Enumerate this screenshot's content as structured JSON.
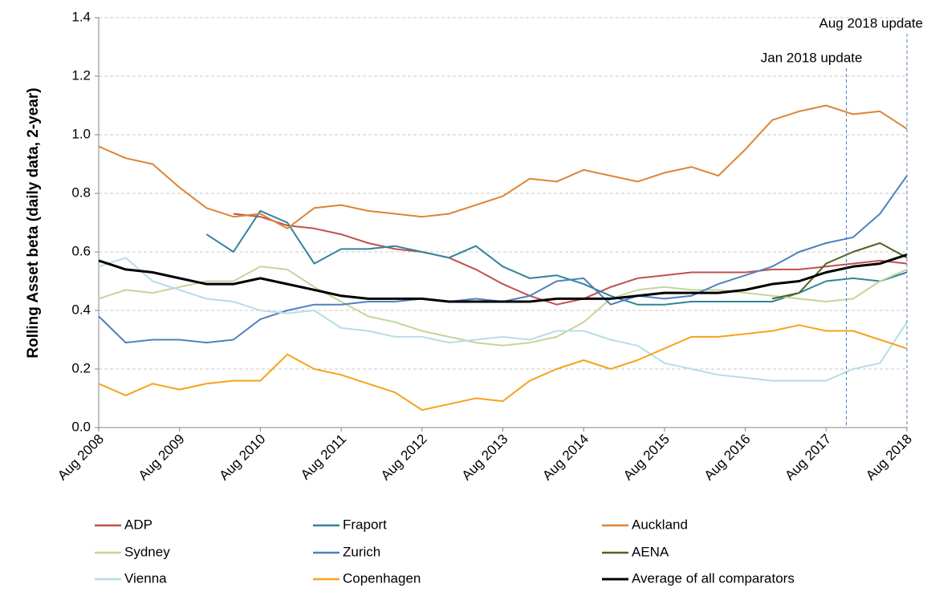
{
  "chart_data": {
    "type": "line",
    "y_label": "Rolling Asset beta (daily data, 2-year)",
    "x": [
      "2008-08",
      "2008-12",
      "2009-04",
      "2009-08",
      "2009-12",
      "2010-04",
      "2010-08",
      "2010-12",
      "2011-04",
      "2011-08",
      "2011-12",
      "2012-04",
      "2012-08",
      "2012-12",
      "2013-04",
      "2013-08",
      "2013-12",
      "2014-04",
      "2014-08",
      "2014-12",
      "2015-04",
      "2015-08",
      "2015-12",
      "2016-04",
      "2016-08",
      "2016-12",
      "2017-04",
      "2017-08",
      "2017-12",
      "2018-04",
      "2018-08"
    ],
    "xlim": [
      "2008-08",
      "2018-08"
    ],
    "xticks": [
      {
        "value": "2008-08",
        "label": "Aug 2008"
      },
      {
        "value": "2009-08",
        "label": "Aug 2009"
      },
      {
        "value": "2010-08",
        "label": "Aug 2010"
      },
      {
        "value": "2011-08",
        "label": "Aug 2011"
      },
      {
        "value": "2012-08",
        "label": "Aug 2012"
      },
      {
        "value": "2013-08",
        "label": "Aug 2013"
      },
      {
        "value": "2014-08",
        "label": "Aug 2014"
      },
      {
        "value": "2015-08",
        "label": "Aug 2015"
      },
      {
        "value": "2016-08",
        "label": "Aug 2016"
      },
      {
        "value": "2017-08",
        "label": "Aug 2017"
      },
      {
        "value": "2018-08",
        "label": "Aug 2018"
      }
    ],
    "ylim": [
      0,
      1.4
    ],
    "yticks": [
      {
        "value": 0,
        "label": "0.0"
      },
      {
        "value": 0.2,
        "label": "0.2"
      },
      {
        "value": 0.4,
        "label": "0.4"
      },
      {
        "value": 0.6,
        "label": "0.6"
      },
      {
        "value": 0.8,
        "label": "0.8"
      },
      {
        "value": 1,
        "label": "1.0"
      },
      {
        "value": 1.2,
        "label": "1.2"
      },
      {
        "value": 1.4,
        "label": "1.4"
      }
    ],
    "grid": true,
    "legend": "bottom",
    "annotations": [
      {
        "text": "Jan 2018 update",
        "x": "2017-11"
      },
      {
        "text": "Aug 2018 update",
        "x": "2018-08"
      }
    ],
    "series": [
      {
        "name": "ADP",
        "color": "#c0504d",
        "values": [
          null,
          null,
          null,
          null,
          null,
          0.73,
          0.72,
          0.69,
          0.68,
          0.66,
          0.63,
          0.61,
          0.6,
          0.58,
          0.54,
          0.49,
          0.45,
          0.42,
          0.44,
          0.48,
          0.51,
          0.52,
          0.53,
          0.53,
          0.53,
          0.54,
          0.54,
          0.55,
          0.56,
          0.57,
          0.56
        ]
      },
      {
        "name": "Fraport",
        "color": "#31849b",
        "values": [
          null,
          null,
          null,
          null,
          0.66,
          0.6,
          0.74,
          0.7,
          0.56,
          0.61,
          0.61,
          0.62,
          0.6,
          0.58,
          0.62,
          0.55,
          0.51,
          0.52,
          0.49,
          0.45,
          0.42,
          0.42,
          0.43,
          0.43,
          0.43,
          0.43,
          0.46,
          0.5,
          0.51,
          0.5,
          0.53
        ]
      },
      {
        "name": "Auckland",
        "color": "#dd8435",
        "values": [
          0.96,
          0.92,
          0.9,
          0.82,
          0.75,
          0.72,
          0.73,
          0.68,
          0.75,
          0.76,
          0.74,
          0.73,
          0.72,
          0.73,
          0.76,
          0.79,
          0.85,
          0.84,
          0.88,
          0.86,
          0.84,
          0.87,
          0.89,
          0.86,
          0.95,
          1.05,
          1.08,
          1.1,
          1.07,
          1.08,
          1.02
        ]
      },
      {
        "name": "Sydney",
        "color": "#c3d69b",
        "values": [
          0.44,
          0.47,
          0.46,
          0.48,
          0.5,
          0.5,
          0.55,
          0.54,
          0.48,
          0.43,
          0.38,
          0.36,
          0.33,
          0.31,
          0.29,
          0.28,
          0.29,
          0.31,
          0.36,
          0.44,
          0.47,
          0.48,
          0.47,
          0.47,
          0.46,
          0.45,
          0.44,
          0.43,
          0.44,
          0.5,
          0.54
        ]
      },
      {
        "name": "Zurich",
        "color": "#4f81bd",
        "values": [
          0.38,
          0.29,
          0.3,
          0.3,
          0.29,
          0.3,
          0.37,
          0.4,
          0.42,
          0.42,
          0.43,
          0.43,
          0.44,
          0.43,
          0.44,
          0.43,
          0.45,
          0.5,
          0.51,
          0.42,
          0.45,
          0.44,
          0.45,
          0.49,
          0.52,
          0.55,
          0.6,
          0.63,
          0.65,
          0.73,
          0.86
        ]
      },
      {
        "name": "AENA",
        "color": "#4f6228",
        "values": [
          null,
          null,
          null,
          null,
          null,
          null,
          null,
          null,
          null,
          null,
          null,
          null,
          null,
          null,
          null,
          null,
          null,
          null,
          null,
          null,
          null,
          null,
          null,
          null,
          null,
          0.44,
          0.46,
          0.56,
          0.6,
          0.63,
          0.58
        ]
      },
      {
        "name": "Vienna",
        "color": "#b7dde8",
        "values": [
          0.55,
          0.58,
          0.5,
          0.47,
          0.44,
          0.43,
          0.4,
          0.39,
          0.4,
          0.34,
          0.33,
          0.31,
          0.31,
          0.29,
          0.3,
          0.31,
          0.3,
          0.33,
          0.33,
          0.3,
          0.28,
          0.22,
          0.2,
          0.18,
          0.17,
          0.16,
          0.16,
          0.16,
          0.2,
          0.22,
          0.36
        ]
      },
      {
        "name": "Copenhagen",
        "color": "#f7a21b",
        "values": [
          0.15,
          0.11,
          0.15,
          0.13,
          0.15,
          0.16,
          0.16,
          0.25,
          0.2,
          0.18,
          0.15,
          0.12,
          0.06,
          0.08,
          0.1,
          0.09,
          0.16,
          0.2,
          0.23,
          0.2,
          0.23,
          0.27,
          0.31,
          0.31,
          0.32,
          0.33,
          0.35,
          0.33,
          0.33,
          0.3,
          0.27
        ]
      },
      {
        "name": "Average of all comparators",
        "color": "#000000",
        "width": 3,
        "values": [
          0.57,
          0.54,
          0.53,
          0.51,
          0.49,
          0.49,
          0.51,
          0.49,
          0.47,
          0.45,
          0.44,
          0.44,
          0.44,
          0.43,
          0.43,
          0.43,
          0.43,
          0.44,
          0.44,
          0.44,
          0.45,
          0.46,
          0.46,
          0.46,
          0.47,
          0.49,
          0.5,
          0.53,
          0.55,
          0.56,
          0.59
        ]
      }
    ]
  }
}
